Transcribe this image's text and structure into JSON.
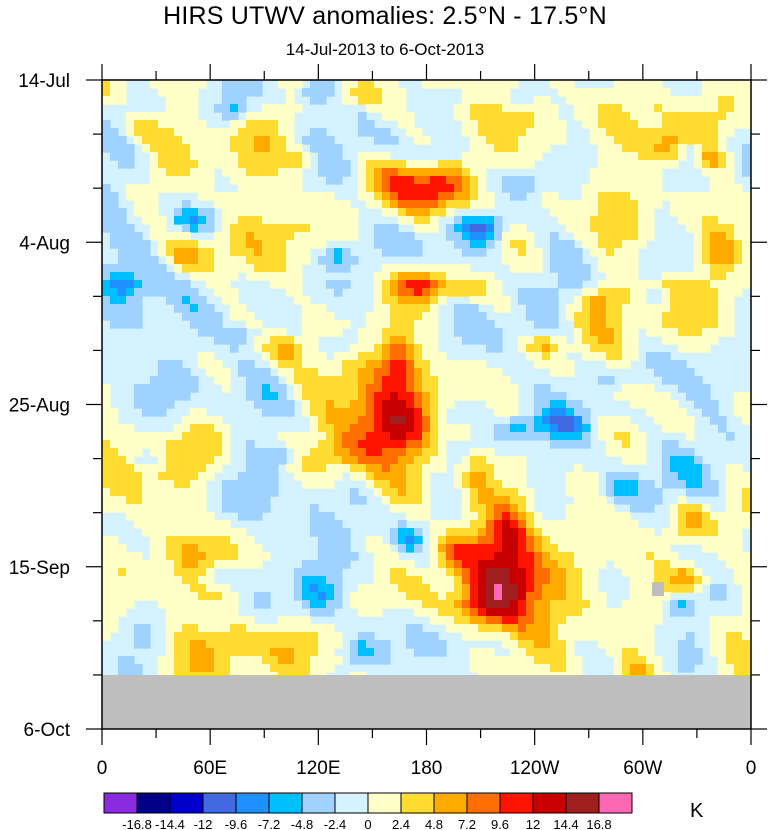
{
  "title": "HIRS UTWV anomalies: 2.5°N - 17.5°N",
  "subtitle": "14-Jul-2013 to 6-Oct-2013",
  "chart_data": {
    "type": "heatmap",
    "title": "HIRS UTWV anomalies: 2.5°N - 17.5°N",
    "subtitle": "14-Jul-2013 to 6-Oct-2013",
    "x_tick_labels": [
      "0",
      "60E",
      "120E",
      "180",
      "120W",
      "60W",
      "0"
    ],
    "y_tick_labels": [
      "14-Jul",
      "4-Aug",
      "25-Aug",
      "15-Sep",
      "6-Oct"
    ],
    "y_range": [
      "14-Jul-2013",
      "6-Oct-2013"
    ],
    "missing_after": "about 30-Sep-2013",
    "colorbar": {
      "unit": "K",
      "levels": [
        "-16.8",
        "-14.4",
        "-12",
        "-9.6",
        "-7.2",
        "-4.8",
        "-2.4",
        "0",
        "2.4",
        "4.8",
        "7.2",
        "9.6",
        "12",
        "14.4",
        "16.8"
      ],
      "colors": [
        "#8a2be2",
        "#00008b",
        "#0000cd",
        "#4169e1",
        "#1e90ff",
        "#00bfff",
        "#a0d2ff",
        "#d4f2ff",
        "#ffffc8",
        "#ffdc32",
        "#ffaa00",
        "#ff6e00",
        "#ff1400",
        "#c80000",
        "#a01e1e",
        "#ff69b4"
      ]
    },
    "missing_color": "#bebebe",
    "features": [
      {
        "x": "180",
        "y": "late Jul",
        "anomaly": "positive",
        "peak": "9.6"
      },
      {
        "x": "165E",
        "y": "early-mid Aug",
        "anomaly": "positive",
        "peak": "9.6"
      },
      {
        "x": "150E-165E",
        "y": "late Aug",
        "anomaly": "positive",
        "peak": "12"
      },
      {
        "x": "145W-135W",
        "y": "mid Sep",
        "anomaly": "positive",
        "peak": "14.4"
      },
      {
        "x": "150W",
        "y": "early Aug",
        "anomaly": "negative",
        "peak": "-12"
      }
    ]
  }
}
